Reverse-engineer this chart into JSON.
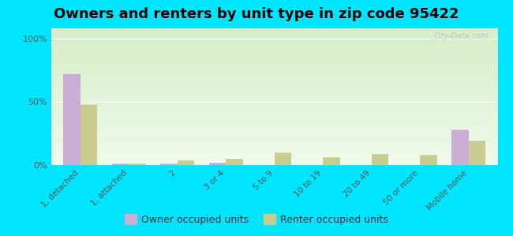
{
  "title": "Owners and renters by unit type in zip code 95422",
  "categories": [
    "1, detached",
    "1, attached",
    "2",
    "3 or 4",
    "5 to 9",
    "10 to 19",
    "20 to 49",
    "50 or more",
    "Mobile home"
  ],
  "owner_values": [
    72,
    1,
    1,
    2,
    0,
    0,
    0,
    0,
    28
  ],
  "renter_values": [
    48,
    1,
    4,
    5,
    10,
    6,
    9,
    8,
    19
  ],
  "owner_color": "#c9aed6",
  "renter_color": "#c8cc8e",
  "bg_top_color": "#d6eec8",
  "bg_bottom_color": "#f0faeb",
  "bg_outer": "#00e5ff",
  "yticks": [
    0,
    50,
    100
  ],
  "ylim": [
    0,
    108
  ],
  "title_fontsize": 13,
  "legend_fontsize": 9,
  "watermark": "City-Data.com",
  "bar_width": 0.35
}
